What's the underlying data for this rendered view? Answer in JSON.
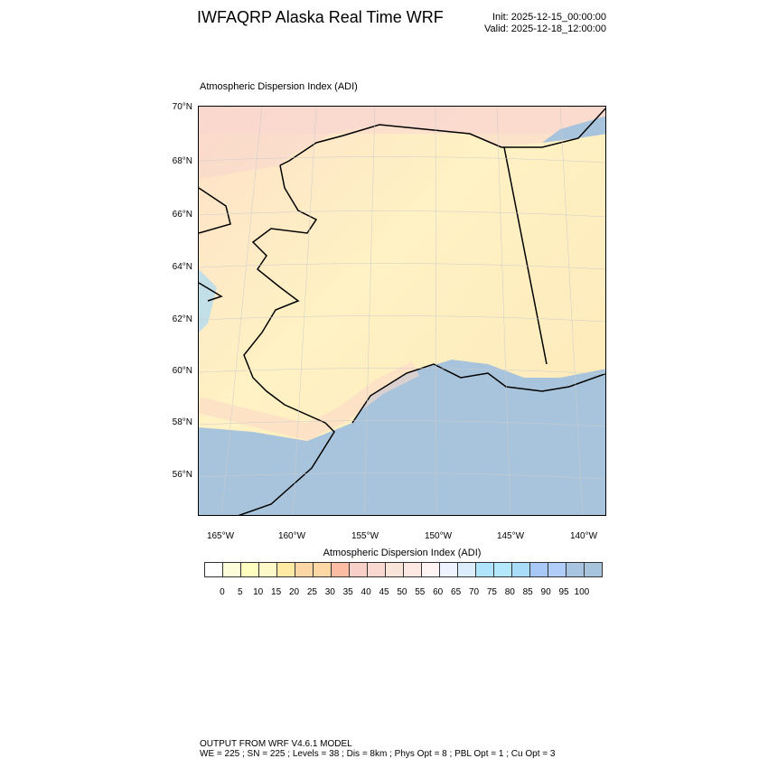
{
  "header": {
    "title": "IWFAQRP Alaska Real Time WRF",
    "init": "Init: 2025-12-15_00:00:00",
    "valid": "Valid: 2025-12-18_12:00:00"
  },
  "map": {
    "subtitle": "Atmospheric Dispersion Index   (ADI)",
    "lat_labels": [
      "70°N",
      "68°N",
      "66°N",
      "64°N",
      "62°N",
      "60°N",
      "58°N",
      "56°N"
    ],
    "lon_labels": [
      "165°W",
      "160°W",
      "155°W",
      "150°W",
      "145°W",
      "140°W"
    ],
    "land_color": "#fff1c0",
    "ocean_color": "#a8c4dc"
  },
  "colorbar": {
    "title": "Atmospheric Dispersion Index  (ADI)",
    "labels": [
      "0",
      "5",
      "10",
      "15",
      "20",
      "25",
      "30",
      "35",
      "40",
      "45",
      "50",
      "55",
      "60",
      "65",
      "70",
      "75",
      "80",
      "85",
      "90",
      "95",
      "100"
    ],
    "colors": [
      "#ffffff",
      "#fdfdd9",
      "#ffffc0",
      "#fcf8c8",
      "#ffeaa4",
      "#fdd6a6",
      "#fdd8a4",
      "#ffbca4",
      "#f8d0c8",
      "#f8d8d0",
      "#f8e4d8",
      "#fde8e4",
      "#fff4f4",
      "#eef4ff",
      "#dbecfc",
      "#b0e4fc",
      "#b4e8fc",
      "#a8dcf8",
      "#a8c8f8",
      "#b0ccf8",
      "#a8c4e0",
      "#a8c4dc"
    ]
  },
  "footer": {
    "line1": "OUTPUT FROM WRF V4.6.1 MODEL",
    "line2": "WE = 225 ; SN = 225 ; Levels = 38 ; Dis = 8km ; Phys Opt = 8 ; PBL Opt = 1 ; Cu Opt = 3"
  }
}
